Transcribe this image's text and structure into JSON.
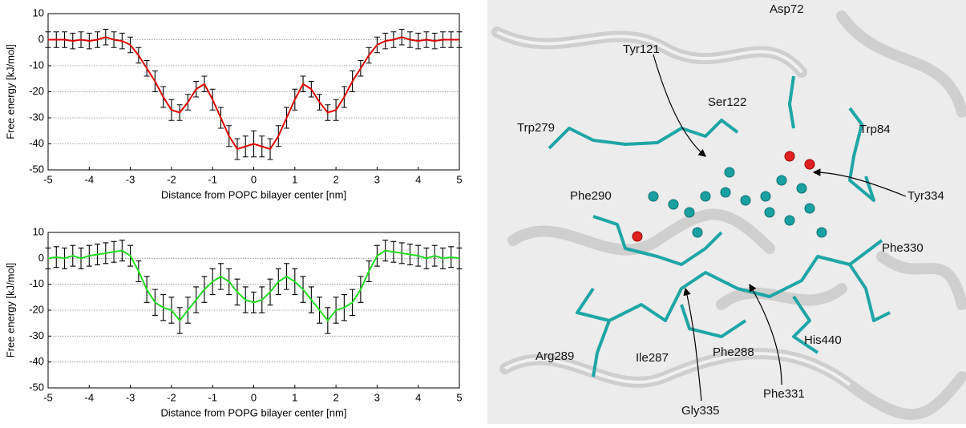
{
  "chart_data": [
    {
      "type": "line",
      "xlabel": "Distance from POPC bilayer center [nm]",
      "ylabel": "Free energy [kJ/mol]",
      "x": [
        -5,
        -4.8,
        -4.6,
        -4.4,
        -4.2,
        -4,
        -3.8,
        -3.6,
        -3.4,
        -3.2,
        -3,
        -2.8,
        -2.6,
        -2.4,
        -2.2,
        -2,
        -1.8,
        -1.6,
        -1.4,
        -1.2,
        -1,
        -0.8,
        -0.6,
        -0.4,
        -0.2,
        0,
        0.2,
        0.4,
        0.6,
        0.8,
        1,
        1.2,
        1.4,
        1.6,
        1.8,
        2,
        2.2,
        2.4,
        2.6,
        2.8,
        3,
        3.2,
        3.4,
        3.6,
        3.8,
        4,
        4.2,
        4.4,
        4.6,
        4.8,
        5
      ],
      "series": [
        {
          "color": "#e00000",
          "values": [
            0,
            0,
            0,
            -0.5,
            0,
            -0.5,
            0,
            1,
            0,
            -0.5,
            -2,
            -6,
            -11,
            -16,
            -22,
            -27,
            -28,
            -24,
            -19,
            -17,
            -23,
            -30,
            -37,
            -42,
            -41,
            -40,
            -41,
            -42,
            -37,
            -30,
            -23,
            -17,
            -19,
            -24,
            -28,
            -27,
            -22,
            -16,
            -11,
            -6,
            -2,
            -0.5,
            0,
            1,
            0,
            -0.5,
            0,
            -0.5,
            0,
            0,
            0
          ],
          "errors": [
            3,
            3,
            3,
            3,
            3,
            3,
            3,
            3,
            3,
            3,
            3,
            3,
            3,
            4,
            4,
            4,
            3,
            3,
            3,
            3,
            4,
            4,
            4,
            4,
            4,
            5,
            4,
            4,
            4,
            4,
            4,
            3,
            3,
            3,
            3,
            4,
            4,
            4,
            3,
            3,
            3,
            3,
            3,
            3,
            3,
            3,
            3,
            3,
            3,
            3,
            3
          ]
        }
      ],
      "xlim": [
        -5,
        5
      ],
      "xticks": [
        -5,
        -4,
        -3,
        -2,
        -1,
        0,
        1,
        2,
        3,
        4,
        5
      ],
      "ylim": [
        -50,
        10
      ],
      "yticks": [
        -50,
        -40,
        -30,
        -20,
        -10,
        0,
        10
      ],
      "grid": true
    },
    {
      "type": "line",
      "xlabel": "Distance from POPG bilayer center [nm]",
      "ylabel": "Free energy [kJ/mol]",
      "x": [
        -5,
        -4.8,
        -4.6,
        -4.4,
        -4.2,
        -4,
        -3.8,
        -3.6,
        -3.4,
        -3.2,
        -3,
        -2.8,
        -2.6,
        -2.4,
        -2.2,
        -2,
        -1.8,
        -1.6,
        -1.4,
        -1.2,
        -1,
        -0.8,
        -0.6,
        -0.4,
        -0.2,
        0,
        0.2,
        0.4,
        0.6,
        0.8,
        1,
        1.2,
        1.4,
        1.6,
        1.8,
        2,
        2.2,
        2.4,
        2.6,
        2.8,
        3,
        3.2,
        3.4,
        3.6,
        3.8,
        4,
        4.2,
        4.4,
        4.6,
        4.8,
        5
      ],
      "series": [
        {
          "color": "#22dd22",
          "values": [
            0,
            0.5,
            0,
            1,
            0,
            1,
            1.5,
            2,
            2.5,
            3,
            1,
            -5,
            -12,
            -17,
            -19,
            -20,
            -24,
            -20,
            -16,
            -12,
            -9,
            -7,
            -9,
            -13,
            -16,
            -17,
            -16,
            -13,
            -9,
            -7,
            -9,
            -12,
            -16,
            -20,
            -24,
            -20,
            -19,
            -17,
            -12,
            -5,
            1,
            3,
            2.5,
            2,
            1.5,
            1,
            0,
            1,
            0,
            0.5,
            0
          ],
          "errors": [
            4,
            4,
            4,
            4,
            4,
            4,
            4,
            4,
            4,
            4,
            4,
            4,
            5,
            5,
            5,
            5,
            5,
            5,
            5,
            5,
            5,
            5,
            5,
            5,
            5,
            4,
            5,
            5,
            5,
            5,
            5,
            5,
            5,
            5,
            5,
            5,
            5,
            5,
            5,
            4,
            4,
            4,
            4,
            4,
            4,
            4,
            4,
            4,
            4,
            4,
            4
          ]
        }
      ],
      "xlim": [
        -5,
        5
      ],
      "xticks": [
        -5,
        -4,
        -3,
        -2,
        -1,
        0,
        1,
        2,
        3,
        4,
        5
      ],
      "ylim": [
        -50,
        10
      ],
      "yticks": [
        -50,
        -40,
        -30,
        -20,
        -10,
        0,
        10
      ],
      "grid": true
    }
  ],
  "structure": {
    "labels": [
      "Tyr121",
      "Asp72",
      "Ser122",
      "Trp279",
      "Trp84",
      "Tyr334",
      "Phe290",
      "Phe330",
      "Arg289",
      "Ile287",
      "Phe288",
      "His440",
      "Gly335",
      "Phe331"
    ]
  }
}
